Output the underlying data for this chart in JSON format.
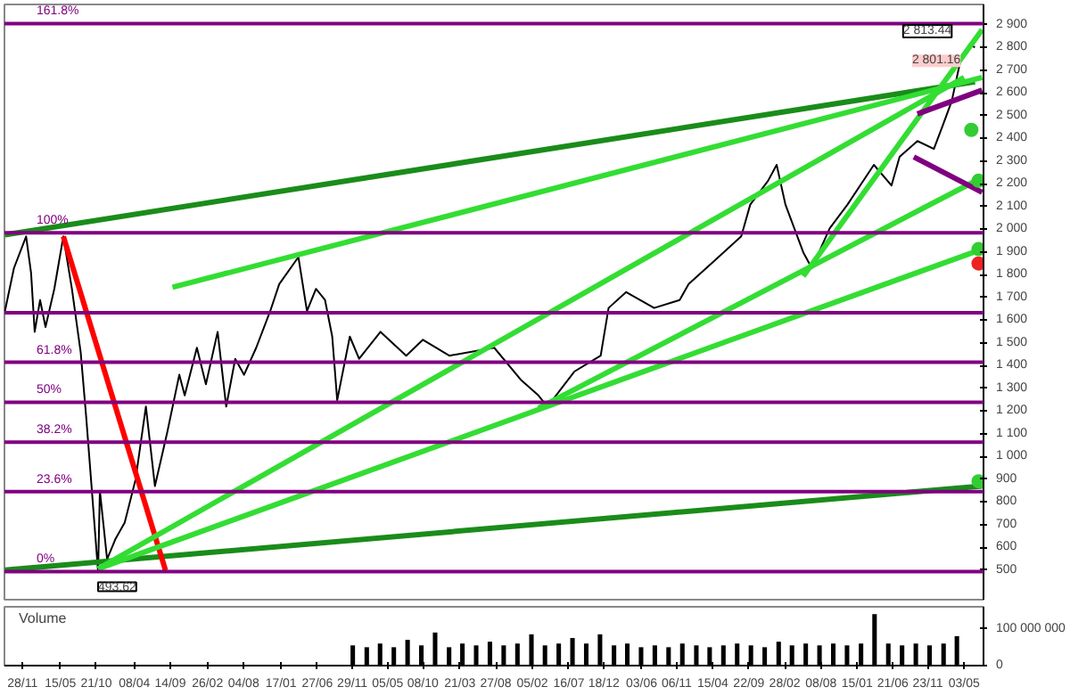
{
  "chart_data": [
    {
      "type": "line",
      "xlim": [
        "2001-09-09",
        "2013-07-28"
      ],
      "ylim": [
        370,
        2990
      ],
      "tick_labels": "y",
      "grid": false,
      "yticks": [
        500,
        600,
        700,
        800,
        900,
        {
          "value": 1000,
          "label": "1 000"
        },
        {
          "value": 1100,
          "label": "1 100"
        },
        {
          "value": 1200,
          "label": "1 200"
        },
        {
          "value": 1300,
          "label": "1 300"
        },
        {
          "value": 1400,
          "label": "1 400"
        },
        {
          "value": 1500,
          "label": "1 500"
        },
        {
          "value": 1600,
          "label": "1 600"
        },
        {
          "value": 1700,
          "label": "1 700"
        },
        {
          "value": 1800,
          "label": "1 800"
        },
        {
          "value": 1900,
          "label": "1 900"
        },
        {
          "value": 2000,
          "label": "2 000"
        },
        {
          "value": 2100,
          "label": "2 100"
        },
        {
          "value": 2200,
          "label": "2 200"
        },
        {
          "value": 2300,
          "label": "2 300"
        },
        {
          "value": 2400,
          "label": "2 400"
        },
        {
          "value": 2500,
          "label": "2 500"
        },
        {
          "value": 2600,
          "label": "2 600"
        },
        {
          "value": 2700,
          "label": "2 700"
        },
        {
          "value": 2800,
          "label": "2 800"
        },
        {
          "value": 2900,
          "label": "2 900"
        }
      ],
      "ref_lines": [
        {
          "axis": "y",
          "value": 2906,
          "label": null,
          "color": "#800080"
        },
        {
          "axis": "y",
          "value": 1985,
          "label": null,
          "color": "#800080"
        },
        {
          "axis": "y",
          "value": 1633,
          "label": null,
          "color": "#800080"
        },
        {
          "axis": "y",
          "value": 1415,
          "label": null,
          "color": "#800080"
        },
        {
          "axis": "y",
          "value": 1239,
          "label": null,
          "color": "#800080"
        },
        {
          "axis": "y",
          "value": 1063,
          "label": null,
          "color": "#800080"
        },
        {
          "axis": "y",
          "value": 846,
          "label": null,
          "color": "#800080"
        },
        {
          "axis": "y",
          "value": 493.62,
          "label": null,
          "color": "#800080"
        }
      ],
      "series": [
        {
          "type": "line",
          "color": "#000000",
          "x": [
            "2001-09-11",
            "2001-10-21",
            "2001-12-14",
            "2002-01-05",
            "2002-01-21",
            "2002-02-14",
            "2002-03-10",
            "2002-04-18",
            "2002-05-28",
            "2002-07-05",
            "2002-08-13",
            "2002-09-06",
            "2002-09-30",
            "2002-10-29",
            "2002-11-06",
            "2002-12-08",
            "2003-01-15",
            "2003-02-24",
            "2003-04-13",
            "2003-05-29",
            "2003-07-08",
            "2003-09-01",
            "2003-10-24",
            "2003-11-17",
            "2004-01-10",
            "2004-02-19",
            "2004-04-11",
            "2004-05-19",
            "2004-06-28",
            "2004-08-06",
            "2004-09-29",
            "2004-11-30",
            "2005-01-09",
            "2005-04-04",
            "2005-05-12",
            "2005-06-21",
            "2005-07-31",
            "2005-09-01",
            "2005-09-23",
            "2005-11-18",
            "2005-12-29",
            "2006-04-03",
            "2006-07-26",
            "2006-10-08",
            "2007-02-02",
            "2007-08-20",
            "2007-12-15",
            "2008-03-03",
            "2008-04-12",
            "2008-08-09",
            "2008-12-04",
            "2009-01-08",
            "2009-03-27",
            "2009-07-29",
            "2009-11-19",
            "2009-12-29",
            "2010-04-25",
            "2010-08-19",
            "2010-09-28",
            "2010-12-16",
            "2011-01-23",
            "2011-03-03",
            "2011-05-21",
            "2011-06-28",
            "2011-09-15",
            "2011-12-03",
            "2012-03-29",
            "2012-06-15",
            "2012-07-21",
            "2012-10-08",
            "2012-12-20",
            "2013-01-29",
            "2013-03-09",
            "2013-04-16",
            "2013-05-27",
            "2013-06-20"
          ],
          "values": [
            1640,
            1829,
            1969,
            1808,
            1549,
            1689,
            1570,
            1738,
            1969,
            1738,
            1458,
            1178,
            870,
            493.62,
            849,
            548,
            639,
            709,
            898,
            1220,
            870,
            1108,
            1360,
            1269,
            1479,
            1318,
            1549,
            1220,
            1430,
            1360,
            1479,
            1640,
            1759,
            1878,
            1640,
            1738,
            1689,
            1528,
            1248,
            1528,
            1430,
            1549,
            1444,
            1514,
            1444,
            1479,
            1339,
            1269,
            1220,
            1374,
            1444,
            1654,
            1724,
            1654,
            1689,
            1759,
            1864,
            1969,
            2109,
            2214,
            2284,
            2109,
            1899,
            1829,
            2004,
            2109,
            2284,
            2193,
            2319,
            2389,
            2354,
            2459,
            2564,
            2739,
            2813.44,
            2801.16
          ]
        },
        {
          "type": "line",
          "color": "#1a8c1a",
          "x": [
            "2001-09-11",
            "2013-06-20"
          ],
          "values": [
            1976,
            2650
          ]
        },
        {
          "type": "line",
          "color": "#1a8c1a",
          "x": [
            "2001-09-11",
            "2013-07-22"
          ],
          "values": [
            500,
            870
          ]
        },
        {
          "type": "line",
          "color": "#ff0000",
          "x": [
            "2002-05-28",
            "2003-08-24"
          ],
          "values": [
            1969,
            499
          ]
        },
        {
          "type": "line",
          "color": "#33dd33",
          "x": [
            "2002-10-29",
            "2013-05-03"
          ],
          "values": [
            506,
            2669
          ]
        },
        {
          "type": "line",
          "color": "#33dd33",
          "x": [
            "2002-10-29",
            "2013-07-22"
          ],
          "values": [
            506,
            1913
          ]
        },
        {
          "type": "line",
          "color": "#33dd33",
          "x": [
            "2008-03-03",
            "2013-07-22"
          ],
          "values": [
            1213,
            2228
          ]
        },
        {
          "type": "line",
          "color": "#33dd33",
          "x": [
            "2003-09-24",
            "2013-07-22"
          ],
          "values": [
            1745,
            2669
          ]
        },
        {
          "type": "line",
          "color": "#33dd33",
          "x": [
            "2011-05-21",
            "2013-07-22"
          ],
          "values": [
            1794,
            2879
          ]
        },
        {
          "type": "line",
          "color": "#800080",
          "x": [
            "2012-10-08",
            "2013-07-22"
          ],
          "values": [
            2508,
            2613
          ]
        },
        {
          "type": "line",
          "color": "#800080",
          "x": [
            "2012-09-22",
            "2013-07-22"
          ],
          "values": [
            2319,
            2163
          ]
        },
        {
          "type": "scatter",
          "marker": "circle",
          "color": "#33cc33",
          "x": [
            "2013-06-04",
            "2013-07-06",
            "2013-07-06",
            "2013-07-06"
          ],
          "values": [
            2438,
            2214,
            1913,
            891
          ]
        },
        {
          "type": "scatter",
          "marker": "circle",
          "color": "#ee2222",
          "x": [
            "2013-07-06"
          ],
          "values": [
            1850
          ]
        }
      ],
      "annotations": [
        {
          "text": "161.8%",
          "y": 2906
        },
        {
          "text": "100%",
          "y": 1985
        },
        {
          "text": "61.8%",
          "y": 1415
        },
        {
          "text": "50%",
          "y": 1239
        },
        {
          "text": "38.2%",
          "y": 1063
        },
        {
          "text": "23.6%",
          "y": 846
        },
        {
          "text": "0%",
          "y": 493.62
        },
        {
          "text": "2 813.44",
          "x": "2013-05-27",
          "y": 2813.44
        },
        {
          "text": "2 801.16",
          "x": "2013-06-20",
          "y": 2801.16
        },
        {
          "text": "493.62",
          "x": "2002-10-29",
          "y": 493.62
        }
      ]
    },
    {
      "type": "bar",
      "title": "Volume",
      "xlim": [
        "2001-09-09",
        "2013-07-28"
      ],
      "ylim": [
        0,
        160000000
      ],
      "grid": false,
      "xticks": [
        {
          "value": "2001-11-28",
          "label": "28/11"
        },
        {
          "value": "2002-05-15",
          "label": "15/05"
        },
        {
          "value": "2002-10-21",
          "label": "21/10"
        },
        {
          "value": "2003-04-08",
          "label": "08/04"
        },
        {
          "value": "2003-09-14",
          "label": "14/09"
        },
        {
          "value": "2004-02-26",
          "label": "26/02"
        },
        {
          "value": "2004-08-04",
          "label": "04/08"
        },
        {
          "value": "2005-01-17",
          "label": "17/01"
        },
        {
          "value": "2005-06-27",
          "label": "27/06"
        },
        {
          "value": "2005-11-29",
          "label": "29/11"
        },
        {
          "value": "2006-05-05",
          "label": "05/05"
        },
        {
          "value": "2006-10-08",
          "label": "08/10"
        },
        {
          "value": "2007-03-21",
          "label": "21/03"
        },
        {
          "value": "2007-08-27",
          "label": "27/08"
        },
        {
          "value": "2008-02-05",
          "label": "05/02"
        },
        {
          "value": "2008-07-16",
          "label": "16/07"
        },
        {
          "value": "2008-12-18",
          "label": "18/12"
        },
        {
          "value": "2009-06-03",
          "label": "03/06"
        },
        {
          "value": "2009-11-06",
          "label": "06/11"
        },
        {
          "value": "2010-04-15",
          "label": "15/04"
        },
        {
          "value": "2010-09-22",
          "label": "22/09"
        },
        {
          "value": "2011-02-28",
          "label": "28/02"
        },
        {
          "value": "2011-08-08",
          "label": "08/08"
        },
        {
          "value": "2012-01-15",
          "label": "15/01"
        },
        {
          "value": "2012-06-21",
          "label": "21/06"
        },
        {
          "value": "2012-11-23",
          "label": "23/11"
        },
        {
          "value": "2013-05-03",
          "label": "03/05"
        }
      ],
      "yticks": [
        0,
        {
          "value": 100000000,
          "label": "100 000 000"
        }
      ],
      "series": [
        {
          "color": "#000000",
          "x": [
            "2005-12",
            "2006-02",
            "2006-04",
            "2006-06",
            "2006-08",
            "2006-10",
            "2006-12",
            "2007-02",
            "2007-04",
            "2007-06",
            "2007-08",
            "2007-10",
            "2007-12",
            "2008-02",
            "2008-04",
            "2008-06",
            "2008-08",
            "2008-10",
            "2008-12",
            "2009-02",
            "2009-04",
            "2009-06",
            "2009-08",
            "2009-10",
            "2009-12",
            "2010-02",
            "2010-04",
            "2010-06",
            "2010-08",
            "2010-10",
            "2010-12",
            "2011-02",
            "2011-04",
            "2011-06",
            "2011-08",
            "2011-10",
            "2011-12",
            "2012-02",
            "2012-04",
            "2012-06",
            "2012-08",
            "2012-10",
            "2012-12",
            "2013-02",
            "2013-04"
          ],
          "values": [
            55000000,
            50000000,
            60000000,
            50000000,
            70000000,
            55000000,
            90000000,
            50000000,
            60000000,
            55000000,
            65000000,
            55000000,
            60000000,
            85000000,
            55000000,
            60000000,
            75000000,
            60000000,
            85000000,
            55000000,
            60000000,
            50000000,
            55000000,
            50000000,
            60000000,
            55000000,
            50000000,
            55000000,
            60000000,
            55000000,
            50000000,
            65000000,
            55000000,
            60000000,
            55000000,
            60000000,
            55000000,
            60000000,
            140000000,
            60000000,
            55000000,
            60000000,
            55000000,
            60000000,
            80000000
          ]
        }
      ]
    }
  ]
}
